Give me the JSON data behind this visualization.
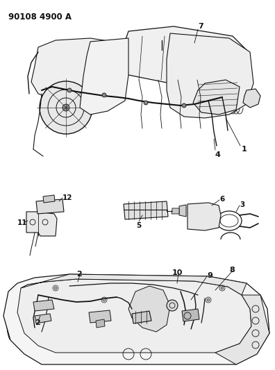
{
  "title": "90108 4900 A",
  "background_color": "#ffffff",
  "line_color": "#111111",
  "figsize": [
    3.96,
    5.33
  ],
  "dpi": 100,
  "text_color": "#111111",
  "title_fontsize": 8.5,
  "label_fontsize": 7.5
}
